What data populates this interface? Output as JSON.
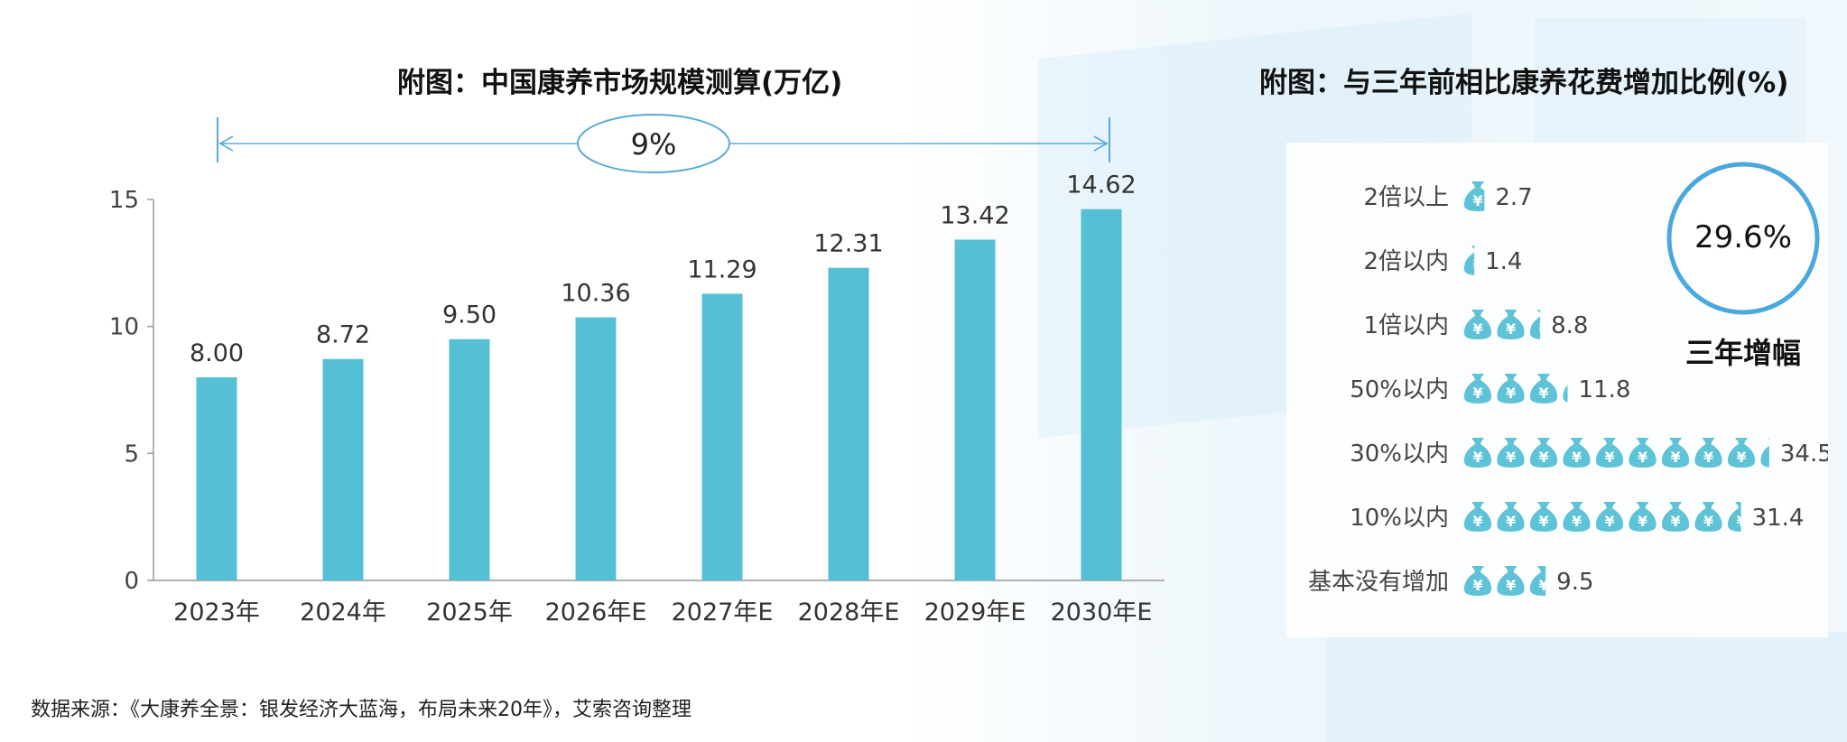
{
  "left_chart_title": "附图：中国康养市场规模测算(万亿)",
  "right_chart_title": "附图：与三年前相比康养花费增加比例(%)",
  "cagr_label": "9%",
  "source_text": "数据来源：《大康养全景：银发经济大蓝海，布局未来20年》，艾索咨询整理",
  "circle_value": "29.6%",
  "circle_caption": "三年增幅",
  "colors": {
    "bar": "#55c0d5",
    "arrow": "#5aaad6",
    "circle": "#4aa8de",
    "icon": "#5ec3d6"
  },
  "chart_data": [
    {
      "type": "bar",
      "title": "附图：中国康养市场规模测算(万亿)",
      "categories": [
        "2023年",
        "2024年",
        "2025年",
        "2026年E",
        "2027年E",
        "2028年E",
        "2029年E",
        "2030年E"
      ],
      "values": [
        8.0,
        8.72,
        9.5,
        10.36,
        11.29,
        12.31,
        13.42,
        14.62
      ],
      "value_labels": [
        "8.00",
        "8.72",
        "9.50",
        "10.36",
        "11.29",
        "12.31",
        "13.42",
        "14.62"
      ],
      "yticks": [
        "0",
        "5",
        "10",
        "15"
      ],
      "ylim": [
        0,
        15
      ],
      "annotation": "9%",
      "grid": false,
      "xlabel": "",
      "ylabel": ""
    },
    {
      "type": "bar",
      "title": "附图：与三年前相比康养花费增加比例(%)",
      "orientation": "horizontal-pictogram",
      "categories": [
        "2倍以上",
        "2倍以内",
        "1倍以内",
        "50%以内",
        "30%以内",
        "10%以内",
        "基本没有增加"
      ],
      "values": [
        2.7,
        1.4,
        8.8,
        11.8,
        34.5,
        31.4,
        9.5
      ],
      "value_labels": [
        "2.7",
        "1.4",
        "8.8",
        "11.8",
        "34.5",
        "31.4",
        "9.5"
      ],
      "icon": "money-bag-icon",
      "units_per_icon": 3.7
    }
  ]
}
